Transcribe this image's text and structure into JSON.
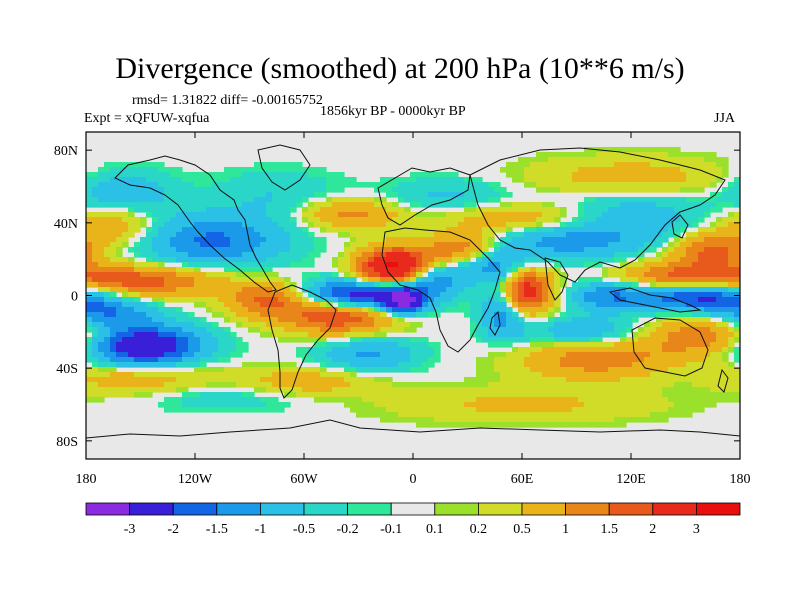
{
  "chart_data": {
    "type": "heatmap",
    "title": "Divergence (smoothed) at 200 hPa (10**6 m/s)",
    "stats_line": "rmsd= 1.31822 diff= -0.00165752",
    "left_label": "Expt = xQFUW-xqfua",
    "center_label": "1856kyr BP - 0000kyr BP",
    "right_label": "JJA",
    "xlim": [
      -180,
      180
    ],
    "ylim": [
      -90,
      90
    ],
    "x_ticks": [
      {
        "value": -180,
        "label": "180"
      },
      {
        "value": -120,
        "label": "120W"
      },
      {
        "value": -60,
        "label": "60W"
      },
      {
        "value": 0,
        "label": "0"
      },
      {
        "value": 60,
        "label": "60E"
      },
      {
        "value": 120,
        "label": "120E"
      },
      {
        "value": 180,
        "label": "180"
      }
    ],
    "y_ticks": [
      {
        "value": 80,
        "label": "80N"
      },
      {
        "value": 40,
        "label": "40N"
      },
      {
        "value": 0,
        "label": "0"
      },
      {
        "value": -40,
        "label": "40S"
      },
      {
        "value": -80,
        "label": "80S"
      }
    ],
    "levels": [
      "-3",
      "-2",
      "-1.5",
      "-1",
      "-0.5",
      "-0.2",
      "-0.1",
      "0.1",
      "0.2",
      "0.5",
      "1",
      "1.5",
      "2",
      "3"
    ],
    "colors": [
      "#8a2be2",
      "#3a1fd8",
      "#1464e6",
      "#1a9ae8",
      "#2bc0e6",
      "#2ad6c8",
      "#2ee79a",
      "#e8e8e8",
      "#9be02b",
      "#d0dc28",
      "#e8b419",
      "#e8861a",
      "#e85a1c",
      "#e82a1c",
      "#e8100c"
    ],
    "features": [
      {
        "lon": -28,
        "lat": 0,
        "rlon": 24,
        "rlat": 6,
        "v": -3.2
      },
      {
        "lon": -5,
        "lat": -3,
        "rlon": 8,
        "rlat": 5,
        "v": -2.5
      },
      {
        "lon": 50,
        "lat": -2,
        "rlon": 9,
        "rlat": 12,
        "v": -2.6
      },
      {
        "lon": 160,
        "lat": 0,
        "rlon": 22,
        "rlat": 6,
        "v": -2.4
      },
      {
        "lon": 110,
        "lat": 0,
        "rlon": 18,
        "rlat": 6,
        "v": -1.5
      },
      {
        "lon": -148,
        "lat": -28,
        "rlon": 22,
        "rlat": 8,
        "v": -3.0
      },
      {
        "lon": -168,
        "lat": -10,
        "rlon": 18,
        "rlat": 6,
        "v": -1.4
      },
      {
        "lon": 10,
        "lat": 10,
        "rlon": 12,
        "rlat": 6,
        "v": -1.6
      },
      {
        "lon": 40,
        "lat": 18,
        "rlon": 14,
        "rlat": 7,
        "v": -1.5
      },
      {
        "lon": -110,
        "lat": 30,
        "rlon": 28,
        "rlat": 10,
        "v": -1.6
      },
      {
        "lon": -160,
        "lat": 55,
        "rlon": 20,
        "rlat": 10,
        "v": -1.0
      },
      {
        "lon": 20,
        "lat": 55,
        "rlon": 25,
        "rlat": 7,
        "v": -0.6
      },
      {
        "lon": 80,
        "lat": 30,
        "rlon": 35,
        "rlat": 8,
        "v": -1.2
      },
      {
        "lon": 120,
        "lat": 45,
        "rlon": 30,
        "rlat": 10,
        "v": -0.8
      },
      {
        "lon": -75,
        "lat": 55,
        "rlon": 25,
        "rlat": 10,
        "v": -0.5
      },
      {
        "lon": -25,
        "lat": -32,
        "rlon": 20,
        "rlat": 7,
        "v": -1.1
      },
      {
        "lon": 95,
        "lat": -20,
        "rlon": 25,
        "rlat": 6,
        "v": -1.0
      },
      {
        "lon": -100,
        "lat": -55,
        "rlon": 40,
        "rlat": 6,
        "v": -0.5
      },
      {
        "lon": -10,
        "lat": 15,
        "rlon": 14,
        "rlat": 8,
        "v": 3.4
      },
      {
        "lon": 58,
        "lat": 2,
        "rlon": 12,
        "rlat": 9,
        "v": 3.5
      },
      {
        "lon": 30,
        "lat": 25,
        "rlon": 16,
        "rlat": 7,
        "v": 2.0
      },
      {
        "lon": -150,
        "lat": 8,
        "rlon": 30,
        "rlat": 6,
        "v": 1.8
      },
      {
        "lon": -40,
        "lat": -10,
        "rlon": 22,
        "rlat": 8,
        "v": 2.2
      },
      {
        "lon": -80,
        "lat": -2,
        "rlon": 16,
        "rlat": 7,
        "v": 1.6
      },
      {
        "lon": 148,
        "lat": 10,
        "rlon": 26,
        "rlat": 6,
        "v": 1.8
      },
      {
        "lon": 165,
        "lat": 25,
        "rlon": 16,
        "rlat": 7,
        "v": 1.6
      },
      {
        "lon": 160,
        "lat": -22,
        "rlon": 25,
        "rlat": 8,
        "v": 1.4
      },
      {
        "lon": 100,
        "lat": -35,
        "rlon": 30,
        "rlat": 8,
        "v": 1.3
      },
      {
        "lon": -165,
        "lat": 40,
        "rlon": 18,
        "rlat": 8,
        "v": 1.2
      },
      {
        "lon": -35,
        "lat": 45,
        "rlon": 20,
        "rlat": 6,
        "v": 1.2
      },
      {
        "lon": 60,
        "lat": 42,
        "rlon": 30,
        "rlat": 6,
        "v": 1.1
      },
      {
        "lon": -150,
        "lat": -45,
        "rlon": 28,
        "rlat": 7,
        "v": 1.0
      },
      {
        "lon": -60,
        "lat": -48,
        "rlon": 28,
        "rlat": 6,
        "v": 0.9
      },
      {
        "lon": 60,
        "lat": -60,
        "rlon": 55,
        "rlat": 7,
        "v": 0.6
      },
      {
        "lon": 120,
        "lat": 65,
        "rlon": 40,
        "rlat": 8,
        "v": 0.8
      }
    ]
  }
}
